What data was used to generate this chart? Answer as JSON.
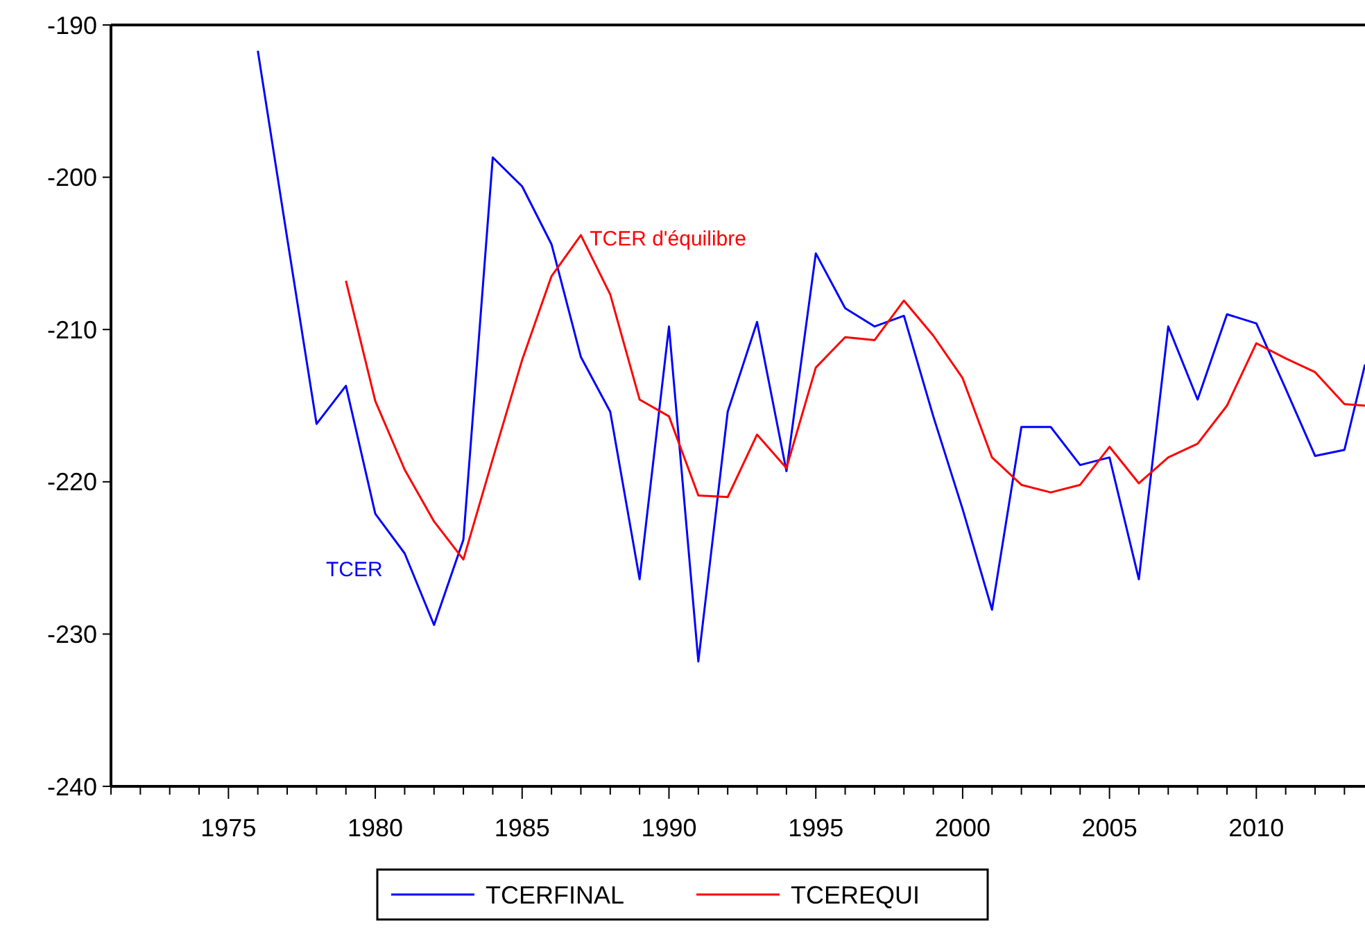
{
  "chart_data": {
    "type": "line",
    "x": [
      1976,
      1977,
      1978,
      1979,
      1980,
      1981,
      1982,
      1983,
      1984,
      1985,
      1986,
      1987,
      1988,
      1989,
      1990,
      1991,
      1992,
      1993,
      1994,
      1995,
      1996,
      1997,
      1998,
      1999,
      2000,
      2001,
      2002,
      2003,
      2004,
      2005,
      2006,
      2007,
      2008,
      2009,
      2010,
      2011,
      2012,
      2013,
      2013.7
    ],
    "series": [
      {
        "name": "TCERFINAL",
        "color": "#0000ff",
        "values": [
          -191.7,
          -204,
          -216.2,
          -213.7,
          -222.1,
          -224.7,
          -229.4,
          -223.8,
          -198.7,
          -200.6,
          -204.4,
          -211.8,
          -215.4,
          -226.4,
          -209.8,
          -231.8,
          -215.4,
          -209.5,
          -219.3,
          -205.0,
          -208.6,
          -209.8,
          -209.1,
          -215.7,
          -221.8,
          -228.4,
          -216.4,
          -216.4,
          -218.9,
          -218.4,
          -226.4,
          -209.8,
          -214.6,
          -209.0,
          -209.6,
          -213.9,
          -218.3,
          -217.9,
          -212.3
        ]
      },
      {
        "name": "TCEREQUI",
        "color": "#ff0000",
        "values": [
          null,
          null,
          null,
          -206.8,
          -214.7,
          -219.2,
          -222.6,
          -225.1,
          -218.5,
          -212.0,
          -206.5,
          -203.8,
          -207.7,
          -214.6,
          -215.7,
          -220.9,
          -221.0,
          -216.9,
          -219.1,
          -212.5,
          -210.5,
          -210.7,
          -208.1,
          -210.4,
          -213.2,
          -218.4,
          -220.2,
          -220.7,
          -220.2,
          -217.7,
          -220.1,
          -218.4,
          -217.5,
          -215.0,
          -210.9,
          -211.9,
          -212.8,
          -214.9,
          -215.0
        ]
      }
    ],
    "annotations": [
      {
        "text": "TCER d'équilibre",
        "x": 1987.3,
        "y": -204.0
      },
      "TCER"
    ],
    "xlim": [
      1971,
      2013.7
    ],
    "xticks": [
      {
        "value": 1971,
        "label": null
      },
      {
        "value": 1972,
        "label": null
      },
      {
        "value": 1973,
        "label": null
      },
      {
        "value": 1974,
        "label": null
      },
      1975,
      {
        "value": 1976,
        "label": null
      },
      {
        "value": 1977,
        "label": null
      },
      {
        "value": 1978,
        "label": null
      },
      {
        "value": 1979,
        "label": null
      },
      1980,
      {
        "value": 1981,
        "label": null
      },
      {
        "value": 1982,
        "label": null
      },
      {
        "value": 1983,
        "label": null
      },
      {
        "value": 1984,
        "label": null
      },
      1985,
      {
        "value": 1986,
        "label": null
      },
      {
        "value": 1987,
        "label": null
      },
      {
        "value": 1988,
        "label": null
      },
      {
        "value": 1989,
        "label": null
      },
      1990,
      {
        "value": 1991,
        "label": null
      },
      {
        "value": 1992,
        "label": null
      },
      {
        "value": 1993,
        "label": null
      },
      {
        "value": 1994,
        "label": null
      },
      1995,
      {
        "value": 1996,
        "label": null
      },
      {
        "value": 1997,
        "label": null
      },
      {
        "value": 1998,
        "label": null
      },
      {
        "value": 1999,
        "label": null
      },
      2000,
      {
        "value": 2001,
        "label": null
      },
      {
        "value": 2002,
        "label": null
      },
      {
        "value": 2003,
        "label": null
      },
      {
        "value": 2004,
        "label": null
      },
      2005,
      {
        "value": 2006,
        "label": null
      },
      {
        "value": 2007,
        "label": null
      },
      {
        "value": 2008,
        "label": null
      },
      {
        "value": 2009,
        "label": null
      },
      2010,
      {
        "value": 2011,
        "label": null
      },
      {
        "value": 2012,
        "label": null
      },
      {
        "value": 2013,
        "label": null
      }
    ],
    "ylim": [
      -240,
      -190
    ],
    "yticks": [
      -240,
      -230,
      -220,
      -210,
      -200,
      -190
    ],
    "grid": false,
    "legend": "bottom",
    "marker": "none",
    "line_style": "solid"
  }
}
